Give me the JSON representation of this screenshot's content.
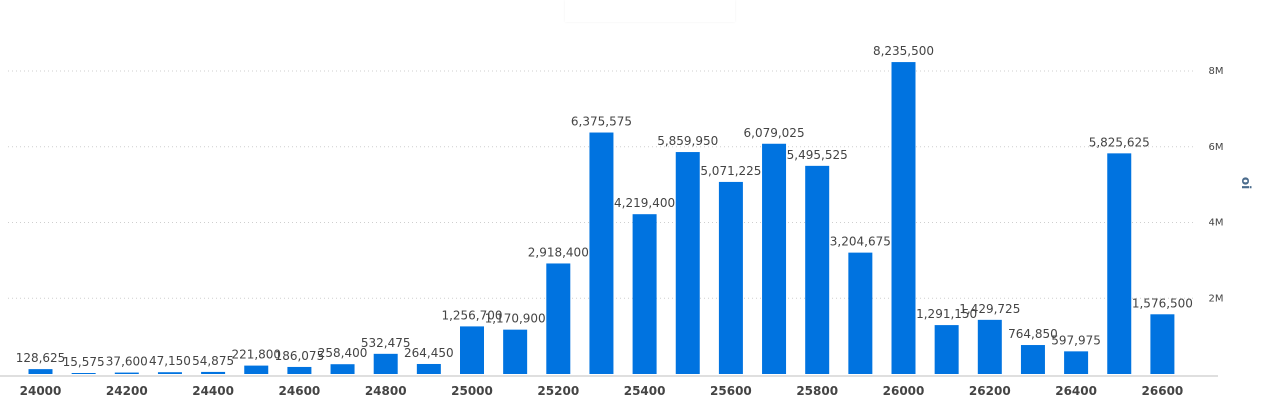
{
  "chart_data": {
    "type": "bar",
    "title": "",
    "xlabel": "",
    "ylabel": "oi",
    "ylim": [
      0,
      8000000
    ],
    "y_ticks": [
      {
        "value": 2000000,
        "label": "2M"
      },
      {
        "value": 4000000,
        "label": "4M"
      },
      {
        "value": 6000000,
        "label": "6M"
      },
      {
        "value": 8000000,
        "label": "8M"
      }
    ],
    "x_tick_labels": [
      "24000",
      "24200",
      "24400",
      "24600",
      "24800",
      "25000",
      "25200",
      "25400",
      "25600",
      "25800",
      "26000",
      "26200",
      "26400",
      "26600"
    ],
    "bar_color": "#0073e0",
    "grid": true,
    "categories": [
      24000,
      24100,
      24200,
      24300,
      24400,
      24500,
      24600,
      24700,
      24800,
      24900,
      25000,
      25100,
      25200,
      25300,
      25400,
      25500,
      25600,
      25700,
      25800,
      25900,
      26000,
      26100,
      26200,
      26300,
      26400,
      26500,
      26600
    ],
    "values": [
      128625,
      15575,
      37600,
      47150,
      54875,
      221800,
      186075,
      258400,
      532475,
      264450,
      1256700,
      1170900,
      2918400,
      6375575,
      4219400,
      5859950,
      5071225,
      6079025,
      5495525,
      3204675,
      8235500,
      1291150,
      1429725,
      764850,
      597975,
      5825625,
      1576500
    ],
    "value_labels": [
      "128,625",
      "15,575",
      "37,600",
      "47,150",
      "54,875",
      "221,800",
      "186,075",
      "258,400",
      "532,475",
      "264,450",
      "1,256,700",
      "1,170,900",
      "2,918,400",
      "6,375,575",
      "4,219,400",
      "5,859,950",
      "5,071,225",
      "6,079,025",
      "5,495,525",
      "3,204,675",
      "8,235,500",
      "1,291,150",
      "1,429,725",
      "764,850",
      "597,975",
      "5,825,625",
      "1,576,500"
    ]
  }
}
